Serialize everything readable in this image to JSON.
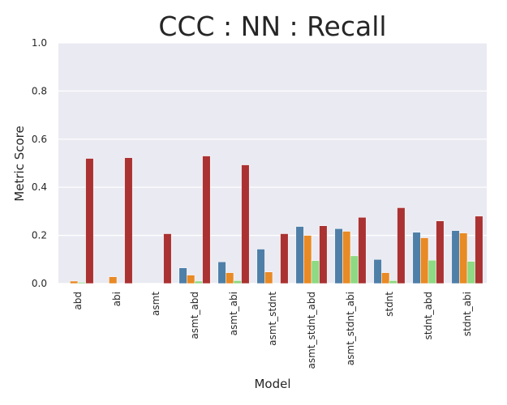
{
  "chart_data": {
    "type": "bar",
    "title": "CCC : NN : Recall",
    "xlabel": "Model",
    "ylabel": "Metric Score",
    "ylim": [
      0,
      1.0
    ],
    "yticks": [
      "0.0",
      "0.2",
      "0.4",
      "0.6",
      "0.8",
      "1.0"
    ],
    "grid": true,
    "legend": "none",
    "categories": [
      "abd",
      "abi",
      "asmt",
      "asmt_abd",
      "asmt_abi",
      "asmt_stdnt",
      "asmt_stdnt_abd",
      "asmt_stdnt_abi",
      "stdnt",
      "stdnt_abd",
      "stdnt_abi"
    ],
    "colors": [
      "#4e7fa8",
      "#e88a25",
      "#8ed983",
      "#ab3232"
    ],
    "background": "#eaeaf2",
    "series": [
      {
        "values": [
          0.0,
          0.0,
          0.0,
          0.065,
          0.09,
          0.143,
          0.237,
          0.228,
          0.1,
          0.213,
          0.22
        ]
      },
      {
        "values": [
          0.01,
          0.028,
          0.0,
          0.035,
          0.045,
          0.048,
          0.2,
          0.217,
          0.045,
          0.19,
          0.21
        ]
      },
      {
        "values": [
          0.005,
          0.0,
          0.0,
          0.01,
          0.012,
          0.0,
          0.095,
          0.115,
          0.012,
          0.097,
          0.092
        ]
      },
      {
        "values": [
          0.52,
          0.523,
          0.207,
          0.53,
          0.493,
          0.207,
          0.24,
          0.275,
          0.315,
          0.26,
          0.28
        ]
      }
    ]
  }
}
